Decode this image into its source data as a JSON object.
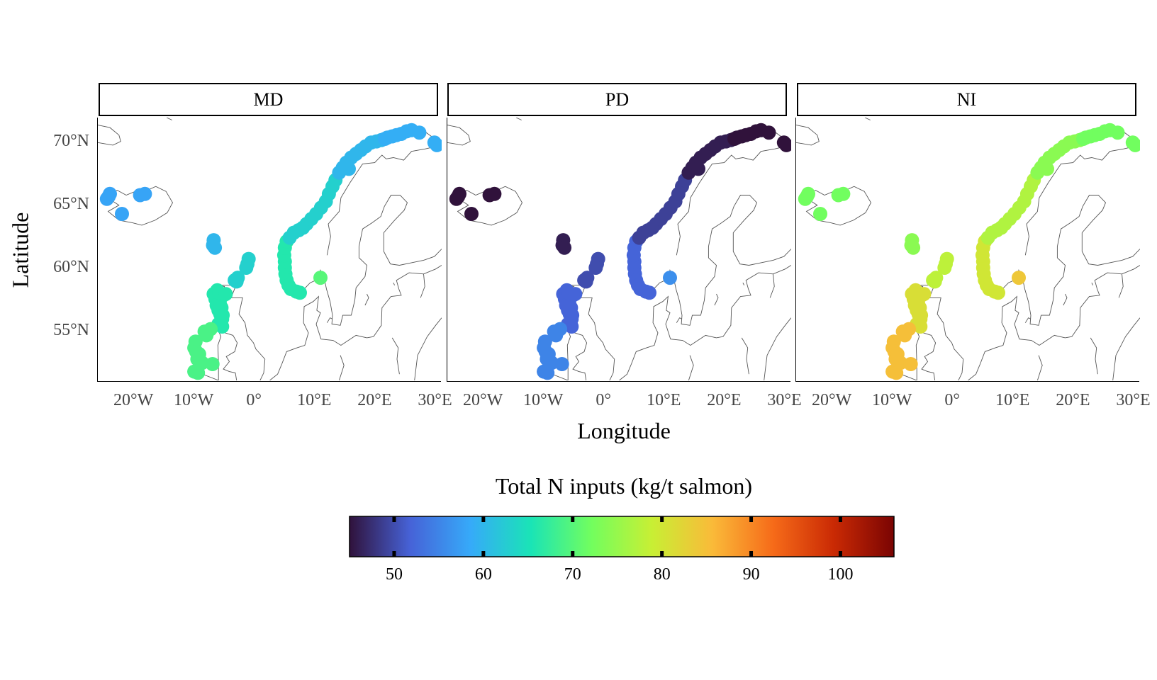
{
  "facets": [
    {
      "label": "MD",
      "values": {
        "iceland": 58,
        "faroe": 60,
        "shetland": 63,
        "scot_west": 66,
        "ireland": 69,
        "norway_south": 66,
        "norway_mid": 63,
        "norway_north": 60,
        "norway_far": 59,
        "sweden_pt": 70
      }
    },
    {
      "label": "PD",
      "values": {
        "iceland": 45,
        "faroe": 46,
        "shetland": 50,
        "scot_west": 52,
        "ireland": 55,
        "norway_south": 52,
        "norway_mid": 49,
        "norway_north": 46,
        "norway_far": 45,
        "sweden_pt": 56
      }
    },
    {
      "label": "NI",
      "values": {
        "iceland": 72,
        "faroe": 74,
        "shetland": 78,
        "scot_west": 81,
        "ireland": 85,
        "norway_south": 80,
        "norway_mid": 77,
        "norway_north": 74,
        "norway_far": 72,
        "sweden_pt": 84
      }
    }
  ],
  "axes": {
    "x_title": "Longitude",
    "y_title": "Latitude",
    "x_ticks": [
      {
        "label": "20°W",
        "lon": -20
      },
      {
        "label": "10°W",
        "lon": -10
      },
      {
        "label": "0°",
        "lon": 0
      },
      {
        "label": "10°E",
        "lon": 10
      },
      {
        "label": "20°E",
        "lon": 20
      },
      {
        "label": "30°E",
        "lon": 30
      }
    ],
    "y_ticks": [
      {
        "label": "70°N",
        "lat": 70
      },
      {
        "label": "65°N",
        "lat": 65
      },
      {
        "label": "60°N",
        "lat": 60
      },
      {
        "label": "55°N",
        "lat": 55
      }
    ],
    "lon_range": [
      -26,
      31
    ],
    "lat_range": [
      51,
      72
    ]
  },
  "legend": {
    "title": "Total N inputs (kg/t salmon)",
    "range": [
      45,
      106
    ],
    "ticks": [
      50,
      60,
      70,
      80,
      90,
      100
    ],
    "colors": [
      "#30123b",
      "#4662d7",
      "#36aaf9",
      "#1ae4b6",
      "#72fe5e",
      "#c8ef34",
      "#faba39",
      "#f66b19",
      "#ca2a04",
      "#7a0403"
    ]
  }
}
